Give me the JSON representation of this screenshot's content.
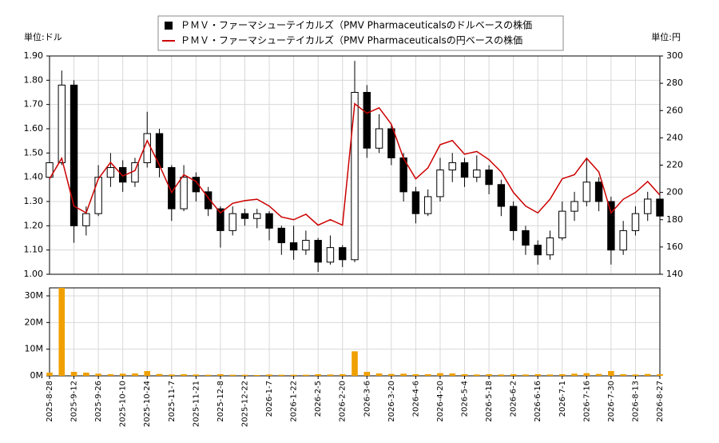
{
  "chart_data": {
    "type": "candlestick",
    "y_label": "単位:ドル",
    "y2_label": "単位:円",
    "categories": [
      "2025-8-28",
      null,
      "2025-9-12",
      null,
      "2025-9-26",
      null,
      "2025-10-10",
      null,
      "2025-10-24",
      null,
      "2025-11-7",
      null,
      "2025-11-21",
      null,
      "2025-12-8",
      null,
      "2025-12-22",
      null,
      "2026-1-7",
      null,
      "2026-1-22",
      null,
      "2026-2-5",
      null,
      "2026-2-20",
      null,
      "2026-3-6",
      null,
      "2026-3-20",
      null,
      "2026-4-6",
      null,
      "2026-4-20",
      null,
      "2026-5-4",
      null,
      "2026-5-18",
      null,
      "2026-6-2",
      null,
      "2026-6-16",
      null,
      "2026-7-1",
      null,
      "2026-7-16",
      null,
      "2026-7-30",
      null,
      "2026-8-13",
      null,
      "2026-8-27"
    ],
    "series": [
      {
        "name": "ＰＭＶ・ファーマシューテイカルズ（PMV Pharmaceuticalsのドルベースの株価",
        "color": "#000000",
        "up_color": "#ffffff",
        "open": [
          1.4,
          1.46,
          1.78,
          1.2,
          1.25,
          1.4,
          1.44,
          1.38,
          1.46,
          1.58,
          1.44,
          1.27,
          1.4,
          1.34,
          1.27,
          1.18,
          1.25,
          1.23,
          1.25,
          1.19,
          1.13,
          1.1,
          1.14,
          1.05,
          1.11,
          1.06,
          1.75,
          1.52,
          1.6,
          1.48,
          1.34,
          1.25,
          1.32,
          1.43,
          1.46,
          1.4,
          1.43,
          1.37,
          1.28,
          1.18,
          1.12,
          1.08,
          1.15,
          1.26,
          1.3,
          1.38,
          1.3,
          1.1,
          1.18,
          1.25,
          1.31
        ],
        "high": [
          1.5,
          1.84,
          1.8,
          1.28,
          1.45,
          1.5,
          1.47,
          1.48,
          1.67,
          1.6,
          1.45,
          1.45,
          1.42,
          1.36,
          1.28,
          1.28,
          1.27,
          1.27,
          1.26,
          1.2,
          1.2,
          1.18,
          1.15,
          1.16,
          1.12,
          1.88,
          1.78,
          1.66,
          1.62,
          1.5,
          1.36,
          1.35,
          1.48,
          1.5,
          1.48,
          1.49,
          1.45,
          1.39,
          1.3,
          1.2,
          1.14,
          1.18,
          1.3,
          1.34,
          1.48,
          1.4,
          1.32,
          1.22,
          1.28,
          1.34,
          1.33
        ],
        "low": [
          1.38,
          1.45,
          1.13,
          1.16,
          1.24,
          1.36,
          1.34,
          1.36,
          1.44,
          1.4,
          1.22,
          1.26,
          1.3,
          1.24,
          1.11,
          1.16,
          1.2,
          1.19,
          1.14,
          1.08,
          1.06,
          1.08,
          1.01,
          1.04,
          1.03,
          1.05,
          1.48,
          1.5,
          1.45,
          1.3,
          1.21,
          1.24,
          1.3,
          1.38,
          1.36,
          1.38,
          1.33,
          1.24,
          1.14,
          1.08,
          1.04,
          1.06,
          1.14,
          1.22,
          1.28,
          1.26,
          1.04,
          1.08,
          1.16,
          1.22,
          1.21
        ],
        "close": [
          1.46,
          1.78,
          1.2,
          1.25,
          1.4,
          1.44,
          1.38,
          1.46,
          1.58,
          1.44,
          1.27,
          1.4,
          1.34,
          1.27,
          1.18,
          1.25,
          1.23,
          1.25,
          1.19,
          1.13,
          1.1,
          1.14,
          1.05,
          1.11,
          1.06,
          1.75,
          1.52,
          1.6,
          1.48,
          1.34,
          1.25,
          1.32,
          1.43,
          1.46,
          1.4,
          1.43,
          1.37,
          1.28,
          1.18,
          1.12,
          1.08,
          1.15,
          1.26,
          1.3,
          1.38,
          1.3,
          1.1,
          1.18,
          1.25,
          1.31,
          1.24
        ]
      },
      {
        "name": "ＰＭＶ・ファーマシューテイカルズ（PMV Pharmaceuticalsの円ベースの株価",
        "color": "#cc0000",
        "axis": "y2",
        "values": [
          210,
          225,
          190,
          185,
          210,
          222,
          212,
          216,
          238,
          220,
          200,
          213,
          208,
          196,
          185,
          192,
          194,
          195,
          190,
          182,
          180,
          184,
          176,
          180,
          176,
          265,
          258,
          262,
          250,
          225,
          210,
          218,
          235,
          238,
          228,
          230,
          224,
          215,
          200,
          190,
          185,
          195,
          210,
          213,
          225,
          215,
          185,
          195,
          200,
          208,
          198
        ]
      }
    ],
    "ylim": [
      1.0,
      1.9
    ],
    "yticks": [
      {
        "value": 1.0,
        "label": "1.00"
      },
      {
        "value": 1.1,
        "label": "1.10"
      },
      {
        "value": 1.2,
        "label": "1.20"
      },
      {
        "value": 1.3,
        "label": "1.30"
      },
      {
        "value": 1.4,
        "label": "1.40"
      },
      {
        "value": 1.5,
        "label": "1.50"
      },
      {
        "value": 1.6,
        "label": "1.60"
      },
      {
        "value": 1.7,
        "label": "1.70"
      },
      {
        "value": 1.8,
        "label": "1.80"
      },
      {
        "value": 1.9,
        "label": "1.90"
      }
    ],
    "y2lim": [
      140,
      300
    ],
    "y2ticks": [
      140,
      160,
      180,
      200,
      220,
      240,
      260,
      280,
      300
    ],
    "grid": true,
    "volume": {
      "color": "#f0a000",
      "ylim": [
        0,
        33000000
      ],
      "yticks": [
        {
          "value": 0,
          "label": "0M"
        },
        {
          "value": 10000000,
          "label": "10M"
        },
        {
          "value": 20000000,
          "label": "20M"
        },
        {
          "value": 30000000,
          "label": "30M"
        }
      ],
      "values": [
        1200000,
        33000000,
        1500000,
        1200000,
        800000,
        600000,
        800000,
        900000,
        1800000,
        700000,
        500000,
        600000,
        500000,
        400000,
        600000,
        400000,
        400000,
        300000,
        500000,
        400000,
        400000,
        400000,
        600000,
        500000,
        600000,
        9200000,
        1500000,
        900000,
        700000,
        800000,
        600000,
        600000,
        1000000,
        900000,
        600000,
        500000,
        600000,
        500000,
        600000,
        500000,
        600000,
        500000,
        600000,
        800000,
        1000000,
        700000,
        1800000,
        600000,
        500000,
        700000,
        600000
      ]
    }
  }
}
